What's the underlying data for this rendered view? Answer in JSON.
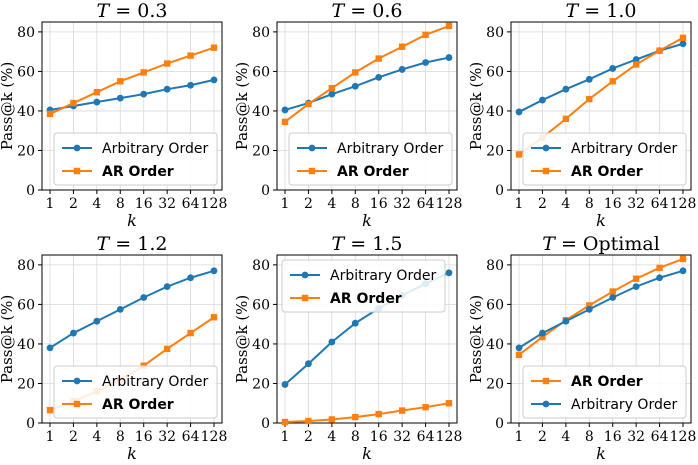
{
  "colors": {
    "arbitrary": "#1f77b4",
    "ar": "#ff7f0e"
  },
  "chart_data": [
    {
      "type": "line",
      "title_prefix": "T",
      "title_value": "0.3",
      "xlabel": "k",
      "ylabel": "Pass@k (%)",
      "categories": [
        "1",
        "2",
        "4",
        "8",
        "16",
        "32",
        "64",
        "128"
      ],
      "ylim": [
        0,
        85
      ],
      "yticks": [
        "0",
        "20",
        "40",
        "60",
        "80"
      ],
      "grid": true,
      "legend_position": "bottom-right",
      "series": [
        {
          "name": "Arbitrary Order",
          "bold": false,
          "color": "#1f77b4",
          "marker": "circle",
          "values": [
            40.5,
            42.5,
            44.5,
            46.5,
            48.5,
            51,
            53,
            55.7
          ]
        },
        {
          "name": "AR Order",
          "bold": true,
          "color": "#ff7f0e",
          "marker": "square",
          "values": [
            38.5,
            44,
            49.5,
            55,
            59.5,
            64,
            68,
            72
          ]
        }
      ]
    },
    {
      "type": "line",
      "title_prefix": "T",
      "title_value": "0.6",
      "xlabel": "k",
      "ylabel": "Pass@k (%)",
      "categories": [
        "1",
        "2",
        "4",
        "8",
        "16",
        "32",
        "64",
        "128"
      ],
      "ylim": [
        0,
        85
      ],
      "yticks": [
        "0",
        "20",
        "40",
        "60",
        "80"
      ],
      "grid": true,
      "legend_position": "bottom-right",
      "series": [
        {
          "name": "Arbitrary Order",
          "bold": false,
          "color": "#1f77b4",
          "marker": "circle",
          "values": [
            40.5,
            44,
            48.5,
            52.5,
            57,
            61,
            64.5,
            67
          ]
        },
        {
          "name": "AR Order",
          "bold": true,
          "color": "#ff7f0e",
          "marker": "square",
          "values": [
            34.5,
            43.5,
            51.5,
            59.5,
            66.5,
            72.5,
            78.5,
            83
          ]
        }
      ]
    },
    {
      "type": "line",
      "title_prefix": "T",
      "title_value": "1.0",
      "xlabel": "k",
      "ylabel": "Pass@k (%)",
      "categories": [
        "1",
        "2",
        "4",
        "8",
        "16",
        "32",
        "64",
        "128"
      ],
      "ylim": [
        0,
        85
      ],
      "yticks": [
        "0",
        "20",
        "40",
        "60",
        "80"
      ],
      "grid": true,
      "legend_position": "bottom-right",
      "series": [
        {
          "name": "Arbitrary Order",
          "bold": false,
          "color": "#1f77b4",
          "marker": "circle",
          "values": [
            39.5,
            45.5,
            51,
            56,
            61.5,
            66,
            70.5,
            74
          ]
        },
        {
          "name": "AR Order",
          "bold": true,
          "color": "#ff7f0e",
          "marker": "square",
          "values": [
            18,
            26.5,
            36,
            46,
            55,
            63.5,
            70.5,
            77
          ]
        }
      ]
    },
    {
      "type": "line",
      "title_prefix": "T",
      "title_value": "1.2",
      "xlabel": "k",
      "ylabel": "Pass@k (%)",
      "categories": [
        "1",
        "2",
        "4",
        "8",
        "16",
        "32",
        "64",
        "128"
      ],
      "ylim": [
        0,
        85
      ],
      "yticks": [
        "0",
        "20",
        "40",
        "60",
        "80"
      ],
      "grid": true,
      "legend_position": "bottom-right",
      "series": [
        {
          "name": "Arbitrary Order",
          "bold": false,
          "color": "#1f77b4",
          "marker": "circle",
          "values": [
            38,
            45.5,
            51.5,
            57.5,
            63.5,
            69,
            73.5,
            77
          ]
        },
        {
          "name": "AR Order",
          "bold": true,
          "color": "#ff7f0e",
          "marker": "square",
          "values": [
            6.5,
            11,
            16,
            22,
            29,
            37.5,
            45.5,
            53.5
          ]
        }
      ]
    },
    {
      "type": "line",
      "title_prefix": "T",
      "title_value": "1.5",
      "xlabel": "k",
      "ylabel": "Pass@k (%)",
      "categories": [
        "1",
        "2",
        "4",
        "8",
        "16",
        "32",
        "64",
        "128"
      ],
      "ylim": [
        0,
        85
      ],
      "yticks": [
        "0",
        "20",
        "40",
        "60",
        "80"
      ],
      "grid": true,
      "legend_position": "top-left",
      "series": [
        {
          "name": "Arbitrary Order",
          "bold": false,
          "color": "#1f77b4",
          "marker": "circle",
          "values": [
            19.5,
            30,
            41,
            50.5,
            58,
            64.5,
            70.5,
            76
          ]
        },
        {
          "name": "AR Order",
          "bold": true,
          "color": "#ff7f0e",
          "marker": "square",
          "values": [
            0.5,
            1,
            1.8,
            3,
            4.5,
            6.3,
            8,
            10
          ]
        }
      ]
    },
    {
      "type": "line",
      "title_prefix": "T",
      "title_value": "Optimal",
      "xlabel": "k",
      "ylabel": "Pass@k (%)",
      "categories": [
        "1",
        "2",
        "4",
        "8",
        "16",
        "32",
        "64",
        "128"
      ],
      "ylim": [
        0,
        85
      ],
      "yticks": [
        "0",
        "20",
        "40",
        "60",
        "80"
      ],
      "grid": true,
      "legend_position": "bottom-right",
      "series": [
        {
          "name": "AR Order",
          "bold": true,
          "color": "#ff7f0e",
          "marker": "square",
          "values": [
            34.5,
            43.5,
            52,
            59.5,
            66.5,
            73,
            78.5,
            83
          ]
        },
        {
          "name": "Arbitrary Order",
          "bold": false,
          "color": "#1f77b4",
          "marker": "circle",
          "values": [
            38,
            45.5,
            51.5,
            57.5,
            63.5,
            69,
            73.5,
            77
          ]
        }
      ]
    }
  ]
}
